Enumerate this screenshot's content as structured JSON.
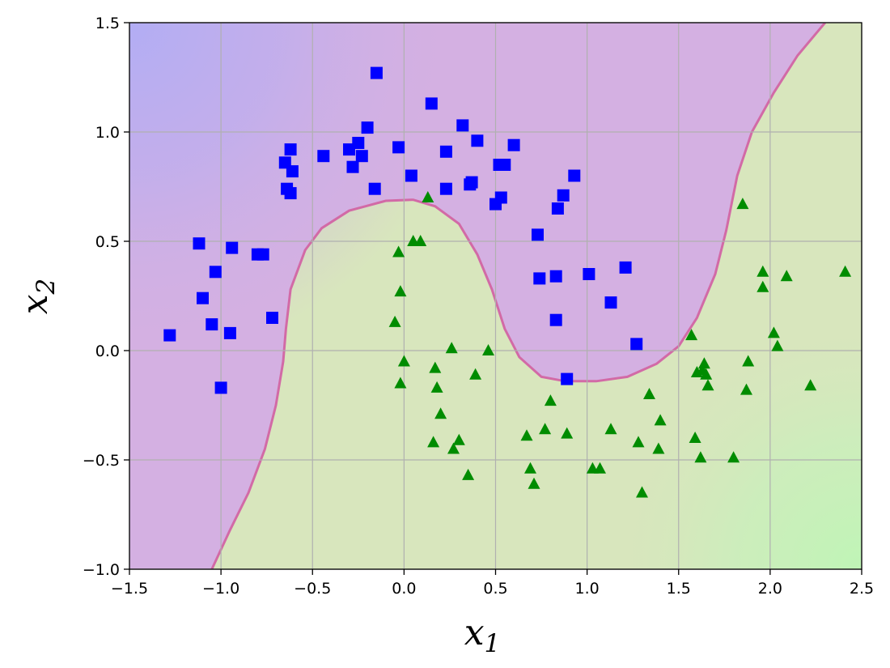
{
  "chart_data": {
    "type": "scatter",
    "title": "",
    "xlabel": "x",
    "xlabel_sub": "1",
    "ylabel": "x",
    "ylabel_sub": "2",
    "xlim": [
      -1.5,
      2.5
    ],
    "ylim": [
      -1.0,
      1.5
    ],
    "grid": true,
    "legend": "none",
    "x_ticks": [
      {
        "value": -1.5,
        "label": "−1.5"
      },
      {
        "value": -1.0,
        "label": "−1.0"
      },
      {
        "value": -0.5,
        "label": "−0.5"
      },
      {
        "value": 0.0,
        "label": "0.0"
      },
      {
        "value": 0.5,
        "label": "0.5"
      },
      {
        "value": 1.0,
        "label": "1.0"
      },
      {
        "value": 1.5,
        "label": "1.5"
      },
      {
        "value": 2.0,
        "label": "2.0"
      },
      {
        "value": 2.5,
        "label": "2.5"
      }
    ],
    "y_ticks": [
      {
        "value": -1.0,
        "label": "−1.0"
      },
      {
        "value": -0.5,
        "label": "−0.5"
      },
      {
        "value": 0.0,
        "label": "0.0"
      },
      {
        "value": 0.5,
        "label": "0.5"
      },
      {
        "value": 1.0,
        "label": "1.0"
      },
      {
        "value": 1.5,
        "label": "1.5"
      }
    ],
    "colors": {
      "class0_region": "#d4b0e2",
      "class1_region": "#d8e6bd",
      "corner_top_left": "#b6b0f0",
      "corner_bottom_right": "#c4f2bc",
      "boundary": "#d26aa6",
      "class0_marker": "#0000ff",
      "class1_marker": "#008c00",
      "grid": "#b0b0b0"
    },
    "decision_boundary": [
      [
        -1.05,
        -1.0
      ],
      [
        -0.95,
        -0.82
      ],
      [
        -0.85,
        -0.65
      ],
      [
        -0.76,
        -0.45
      ],
      [
        -0.7,
        -0.25
      ],
      [
        -0.66,
        -0.05
      ],
      [
        -0.645,
        0.1
      ],
      [
        -0.62,
        0.28
      ],
      [
        -0.54,
        0.46
      ],
      [
        -0.45,
        0.56
      ],
      [
        -0.3,
        0.64
      ],
      [
        -0.1,
        0.685
      ],
      [
        0.05,
        0.69
      ],
      [
        0.17,
        0.66
      ],
      [
        0.3,
        0.58
      ],
      [
        0.4,
        0.44
      ],
      [
        0.48,
        0.28
      ],
      [
        0.55,
        0.1
      ],
      [
        0.63,
        -0.03
      ],
      [
        0.75,
        -0.12
      ],
      [
        0.88,
        -0.14
      ],
      [
        1.05,
        -0.14
      ],
      [
        1.22,
        -0.12
      ],
      [
        1.38,
        -0.06
      ],
      [
        1.5,
        0.02
      ],
      [
        1.6,
        0.15
      ],
      [
        1.7,
        0.35
      ],
      [
        1.76,
        0.55
      ],
      [
        1.82,
        0.8
      ],
      [
        1.9,
        1.0
      ],
      [
        2.02,
        1.18
      ],
      [
        2.15,
        1.35
      ],
      [
        2.3,
        1.5
      ]
    ],
    "series": [
      {
        "marker": "square",
        "points": [
          [
            -1.28,
            0.07
          ],
          [
            -1.12,
            0.49
          ],
          [
            -1.1,
            0.24
          ],
          [
            -1.03,
            0.36
          ],
          [
            -1.05,
            0.12
          ],
          [
            -0.95,
            0.08
          ],
          [
            -0.94,
            0.47
          ],
          [
            -1.0,
            -0.17
          ],
          [
            -0.8,
            0.44
          ],
          [
            -0.77,
            0.44
          ],
          [
            -0.72,
            0.15
          ],
          [
            -0.65,
            0.86
          ],
          [
            -0.64,
            0.74
          ],
          [
            -0.62,
            0.92
          ],
          [
            -0.61,
            0.82
          ],
          [
            -0.62,
            0.72
          ],
          [
            -0.44,
            0.89
          ],
          [
            -0.3,
            0.92
          ],
          [
            -0.28,
            0.84
          ],
          [
            -0.25,
            0.95
          ],
          [
            -0.23,
            0.89
          ],
          [
            -0.2,
            1.02
          ],
          [
            -0.16,
            0.74
          ],
          [
            -0.15,
            1.27
          ],
          [
            -0.03,
            0.93
          ],
          [
            0.04,
            0.8
          ],
          [
            0.15,
            1.13
          ],
          [
            0.23,
            0.91
          ],
          [
            0.23,
            0.74
          ],
          [
            0.32,
            1.03
          ],
          [
            0.36,
            0.76
          ],
          [
            0.37,
            0.77
          ],
          [
            0.4,
            0.96
          ],
          [
            0.5,
            0.67
          ],
          [
            0.52,
            0.85
          ],
          [
            0.53,
            0.7
          ],
          [
            0.55,
            0.85
          ],
          [
            0.6,
            0.94
          ],
          [
            0.73,
            0.53
          ],
          [
            0.74,
            0.33
          ],
          [
            0.83,
            0.34
          ],
          [
            0.84,
            0.65
          ],
          [
            0.87,
            0.71
          ],
          [
            0.93,
            0.8
          ],
          [
            0.83,
            0.14
          ],
          [
            0.89,
            -0.13
          ],
          [
            1.01,
            0.35
          ],
          [
            1.13,
            0.22
          ],
          [
            1.21,
            0.38
          ],
          [
            1.27,
            0.03
          ]
        ]
      },
      {
        "marker": "triangle",
        "points": [
          [
            -0.03,
            0.45
          ],
          [
            -0.05,
            0.13
          ],
          [
            -0.02,
            0.27
          ],
          [
            0.0,
            -0.05
          ],
          [
            -0.02,
            -0.15
          ],
          [
            0.05,
            0.5
          ],
          [
            0.09,
            0.5
          ],
          [
            0.13,
            0.7
          ],
          [
            0.17,
            -0.08
          ],
          [
            0.18,
            -0.17
          ],
          [
            0.2,
            -0.29
          ],
          [
            0.16,
            -0.42
          ],
          [
            0.26,
            0.01
          ],
          [
            0.27,
            -0.45
          ],
          [
            0.3,
            -0.41
          ],
          [
            0.35,
            -0.57
          ],
          [
            0.39,
            -0.11
          ],
          [
            0.46,
            0.0
          ],
          [
            0.67,
            -0.39
          ],
          [
            0.69,
            -0.54
          ],
          [
            0.71,
            -0.61
          ],
          [
            0.77,
            -0.36
          ],
          [
            0.8,
            -0.23
          ],
          [
            0.89,
            -0.38
          ],
          [
            1.03,
            -0.54
          ],
          [
            1.07,
            -0.54
          ],
          [
            1.13,
            -0.36
          ],
          [
            1.28,
            -0.42
          ],
          [
            1.3,
            -0.65
          ],
          [
            1.34,
            -0.2
          ],
          [
            1.39,
            -0.45
          ],
          [
            1.4,
            -0.32
          ],
          [
            1.57,
            0.07
          ],
          [
            1.59,
            -0.4
          ],
          [
            1.6,
            -0.1
          ],
          [
            1.62,
            -0.49
          ],
          [
            1.63,
            -0.09
          ],
          [
            1.64,
            -0.06
          ],
          [
            1.65,
            -0.11
          ],
          [
            1.66,
            -0.16
          ],
          [
            1.8,
            -0.49
          ],
          [
            1.85,
            0.67
          ],
          [
            1.87,
            -0.18
          ],
          [
            1.88,
            -0.05
          ],
          [
            1.96,
            0.36
          ],
          [
            1.96,
            0.29
          ],
          [
            2.02,
            0.08
          ],
          [
            2.04,
            0.02
          ],
          [
            2.09,
            0.34
          ],
          [
            2.22,
            -0.16
          ],
          [
            2.41,
            0.36
          ]
        ]
      }
    ]
  }
}
